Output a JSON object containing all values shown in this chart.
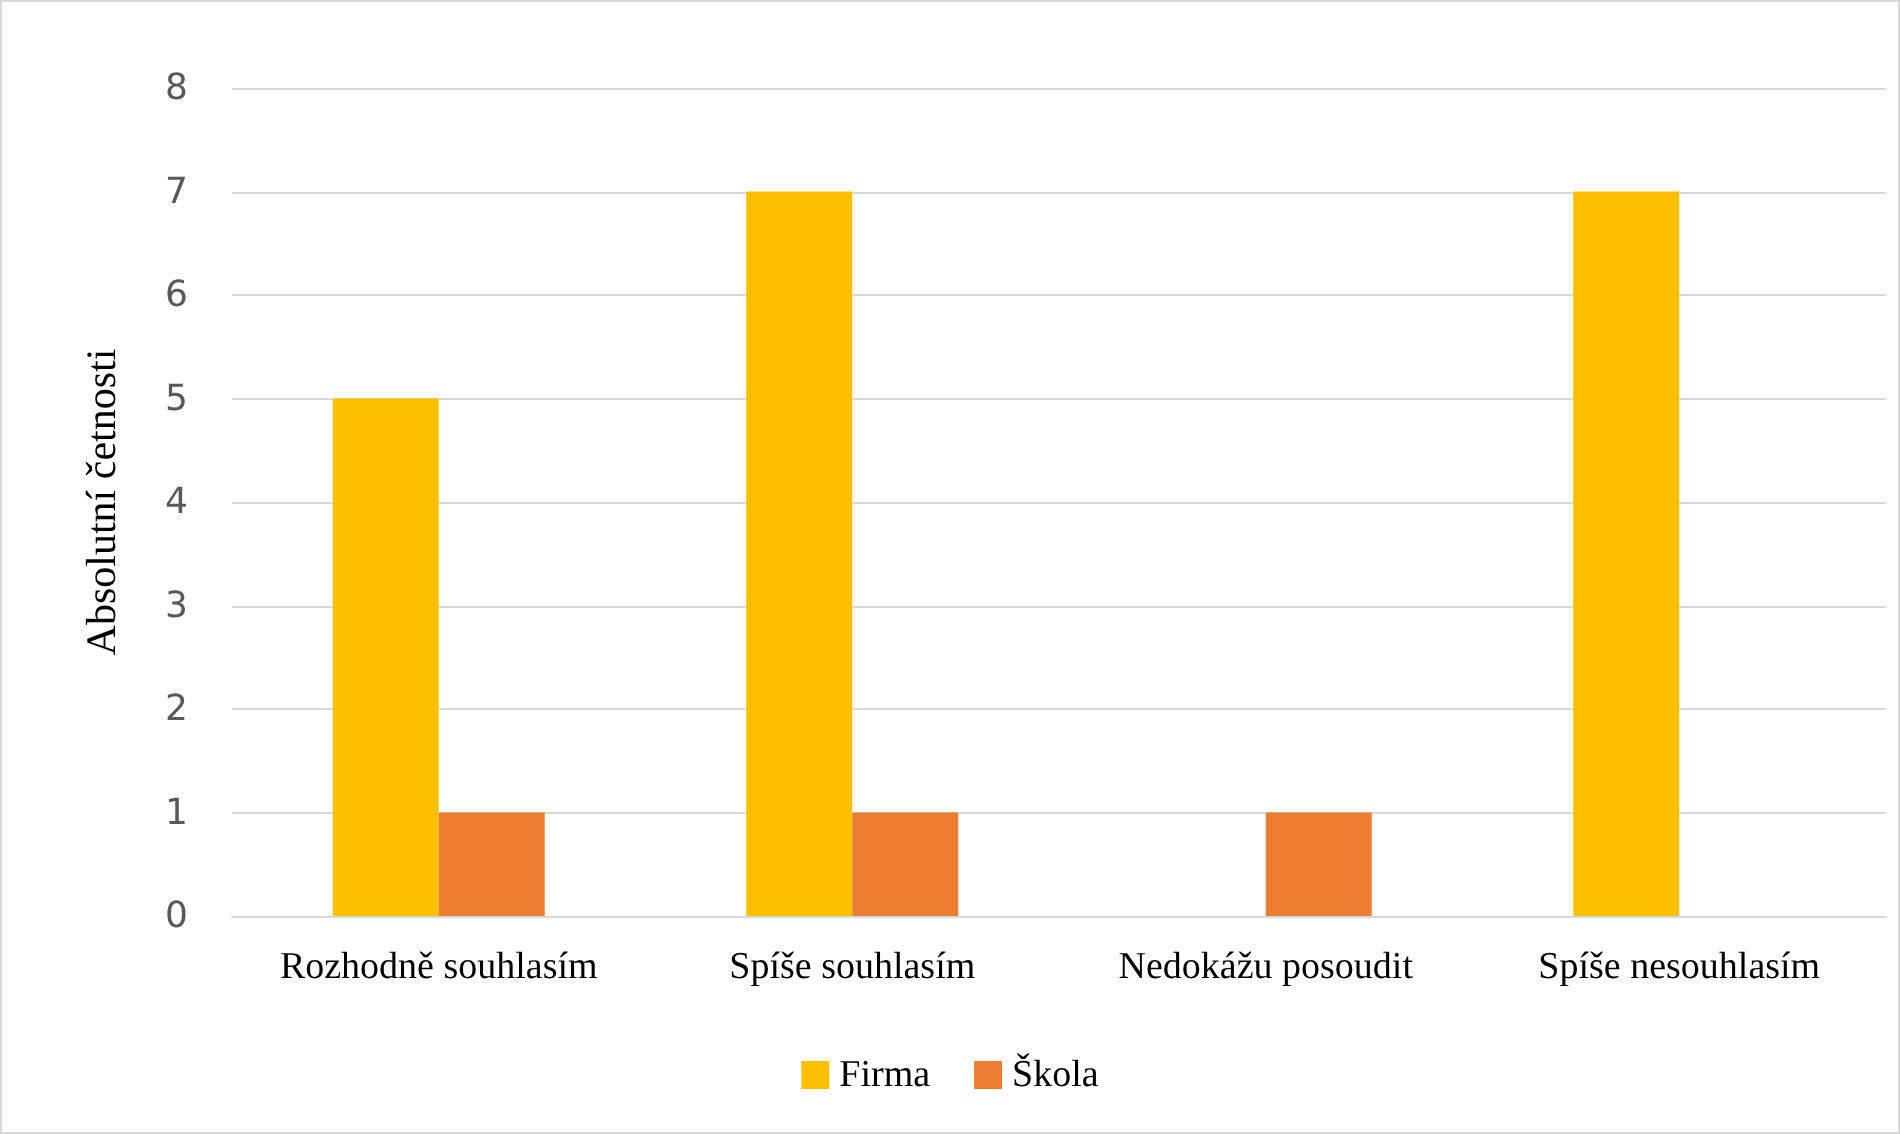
{
  "chart_data": {
    "type": "bar",
    "ylabel": "Absolutní četnosti",
    "categories": [
      "Rozhodně souhlasím",
      "Spíše souhlasím",
      "Nedokážu posoudit",
      "Spíše nesouhlasím"
    ],
    "series": [
      {
        "name": "Firma",
        "color": "#ffc000",
        "values": [
          5,
          7,
          0,
          7
        ]
      },
      {
        "name": "Škola",
        "color": "#ed7d31",
        "values": [
          1,
          1,
          1,
          0
        ]
      }
    ],
    "ylim": [
      0,
      8
    ],
    "yticks": [
      0,
      1,
      2,
      3,
      4,
      5,
      6,
      7,
      8
    ],
    "grid": "y",
    "legend": "bottom"
  }
}
